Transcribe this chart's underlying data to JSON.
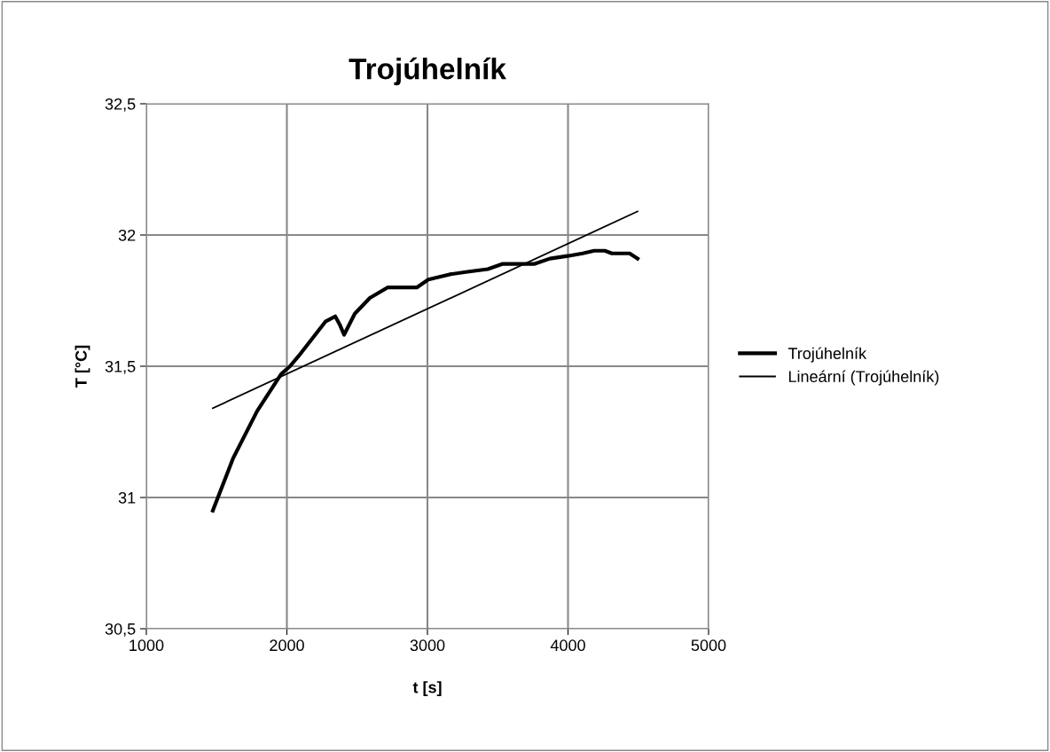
{
  "chart_data": {
    "type": "line",
    "title": "Trojúhelník",
    "xlabel": "t [s]",
    "ylabel": "T [°C]",
    "xlim": [
      1000,
      5000
    ],
    "xticks": [
      1000,
      2000,
      3000,
      4000,
      5000
    ],
    "ylim": [
      30.5,
      32.5
    ],
    "yticks": [
      {
        "value": 30.5,
        "label": "30,5"
      },
      {
        "value": 31,
        "label": "31"
      },
      {
        "value": 31.5,
        "label": "31,5"
      },
      {
        "value": 32,
        "label": "32"
      },
      {
        "value": 32.5,
        "label": "32,5"
      }
    ],
    "grid": true,
    "legend": "right",
    "marker": "none",
    "series": [
      {
        "name": "Trojúhelník",
        "color": "#000000",
        "x": [
          1473,
          1618,
          1789,
          1959,
          2022,
          2085,
          2274,
          2344,
          2375,
          2407,
          2483,
          2590,
          2716,
          2842,
          2924,
          3006,
          3158,
          3284,
          3429,
          3536,
          3662,
          3763,
          3871,
          3997,
          4104,
          4186,
          4262,
          4312,
          4438,
          4495
        ],
        "values": [
          30.95,
          31.15,
          31.33,
          31.47,
          31.5,
          31.54,
          31.67,
          31.69,
          31.66,
          31.62,
          31.7,
          31.76,
          31.8,
          31.8,
          31.8,
          31.83,
          31.85,
          31.86,
          31.87,
          31.89,
          31.89,
          31.89,
          31.91,
          31.92,
          31.93,
          31.94,
          31.94,
          31.93,
          31.93,
          31.91
        ]
      },
      {
        "name": "Lineární (Trojúhelník)",
        "color": "#000000",
        "x": [
          1473,
          4495
        ],
        "values": [
          31.34,
          32.09
        ]
      }
    ]
  }
}
